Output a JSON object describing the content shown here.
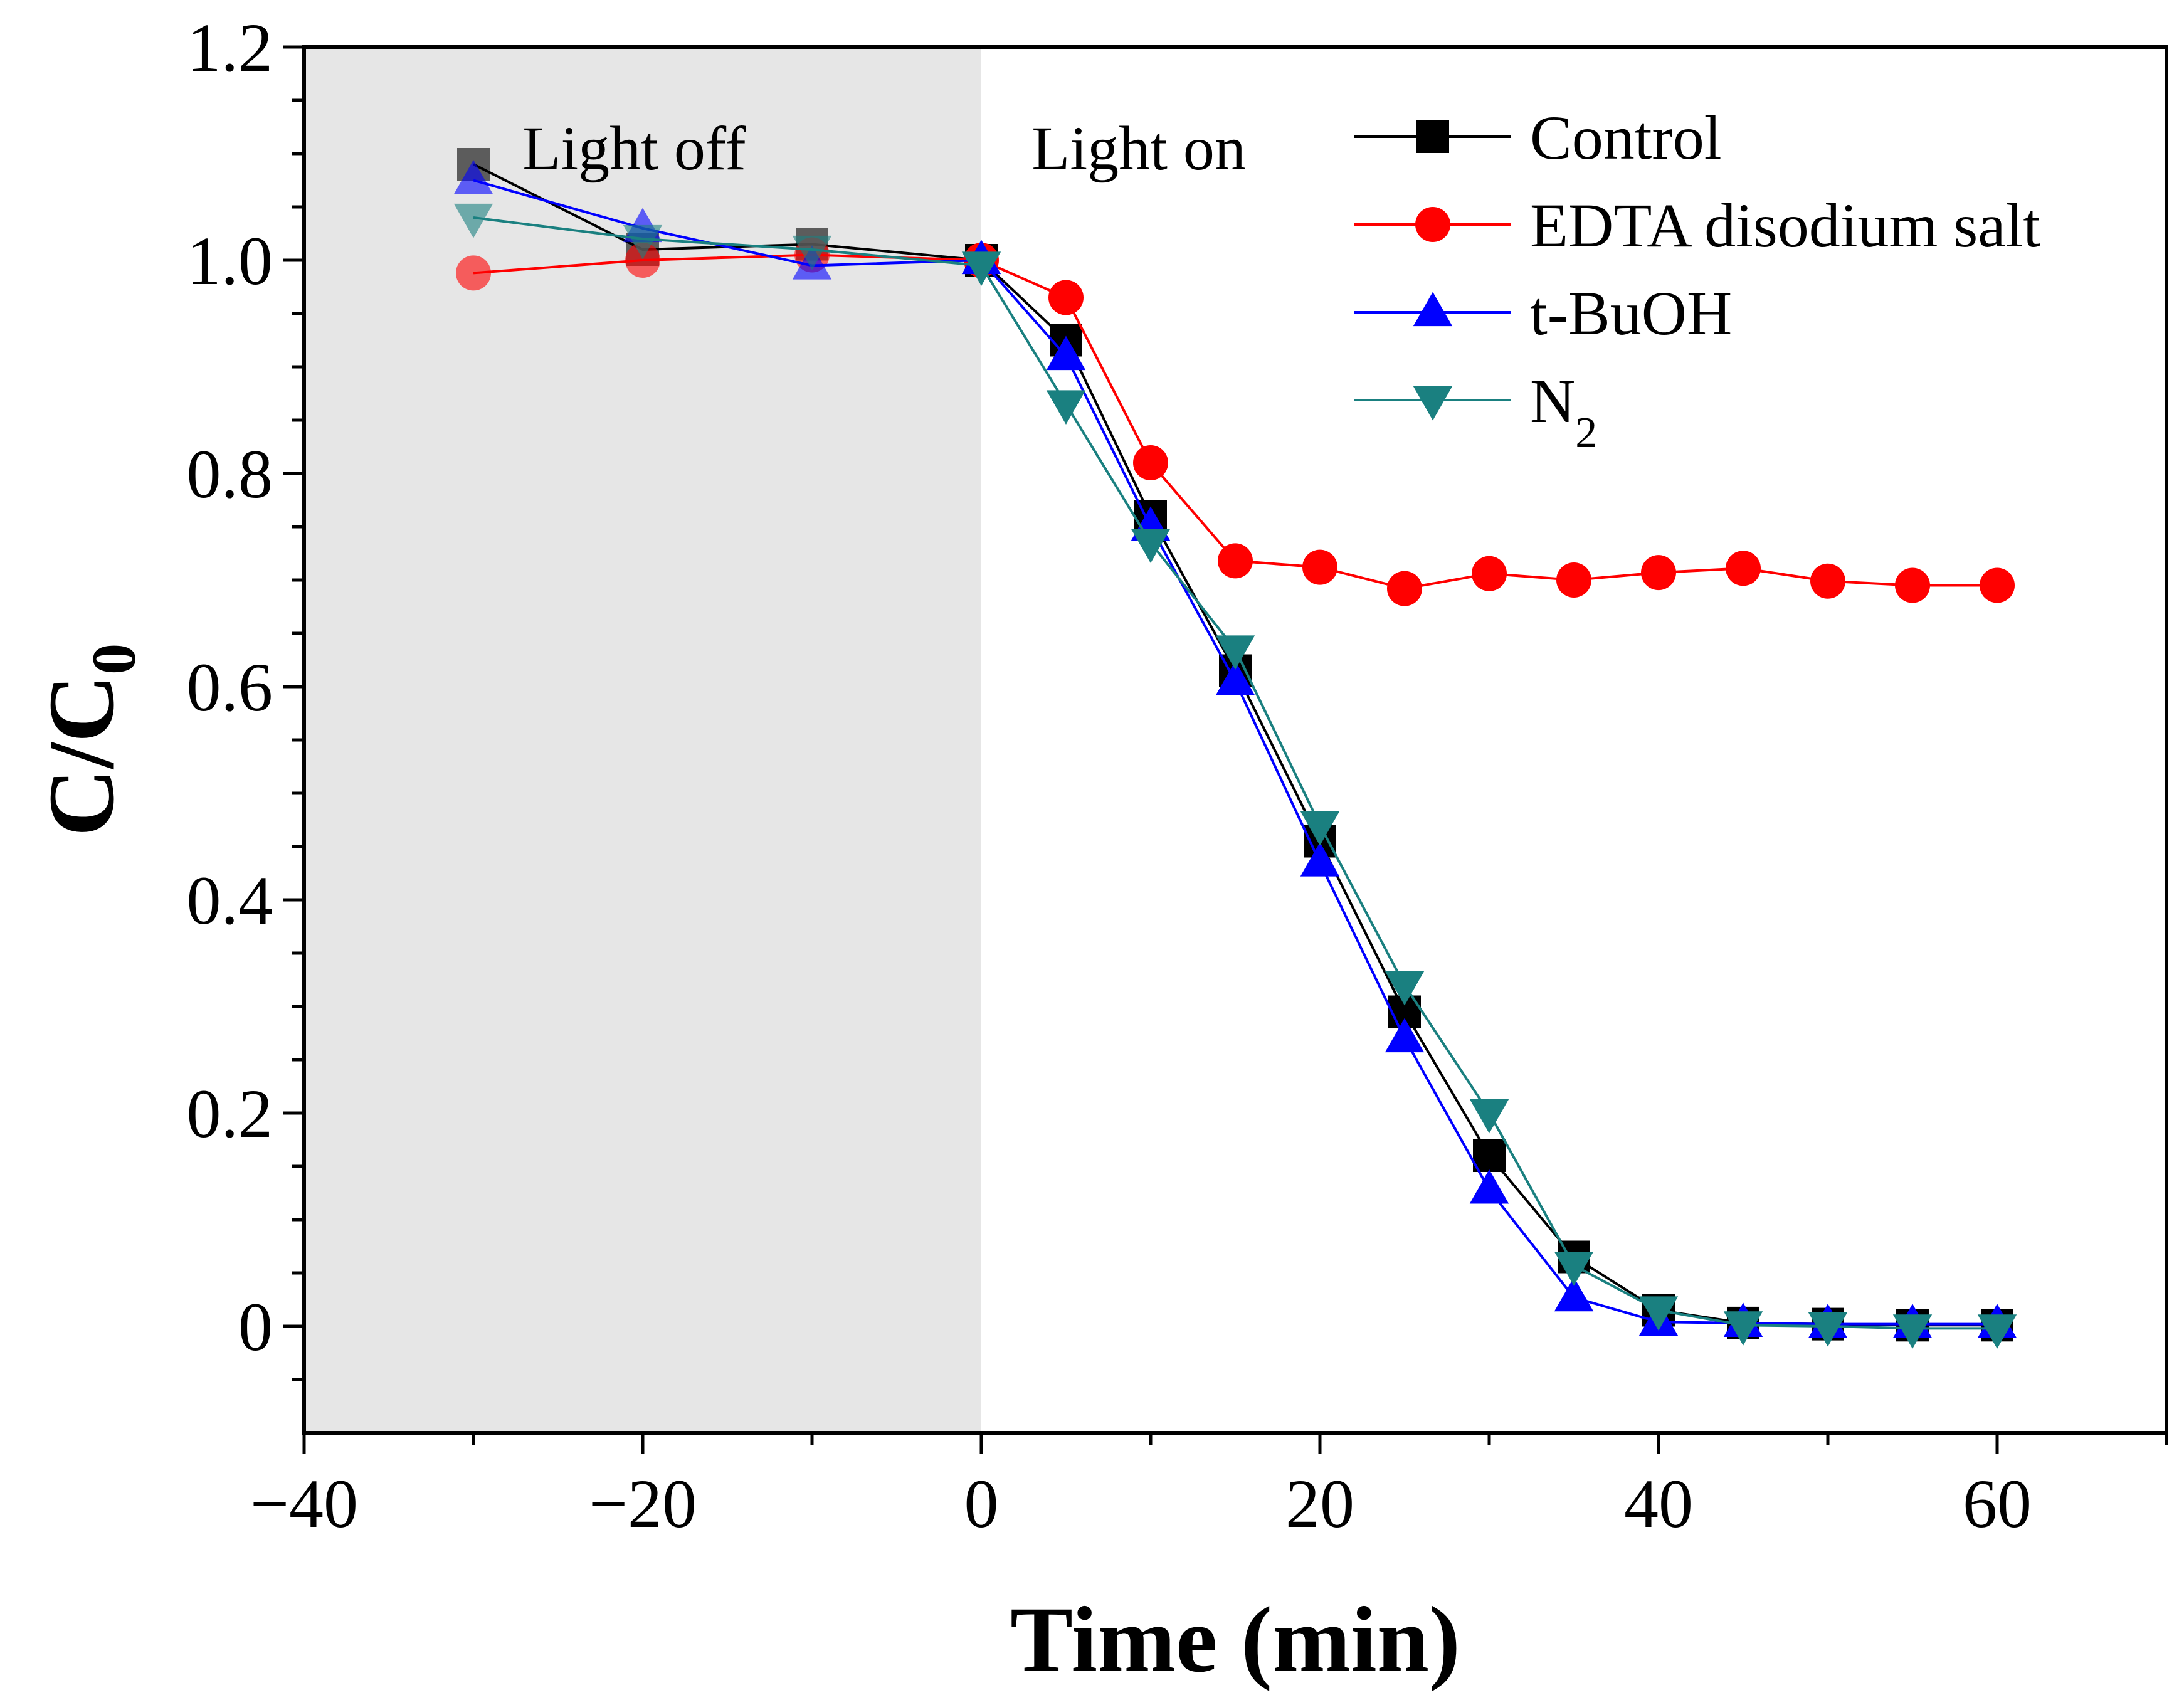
{
  "chart_data": {
    "type": "line",
    "title": "",
    "xlabel": "Time (min)",
    "ylabel_main": "C/C",
    "ylabel_sub": "0",
    "xlim": [
      -40,
      70
    ],
    "ylim": [
      -0.1,
      1.2
    ],
    "xticks": [
      -40,
      -20,
      0,
      20,
      40,
      60
    ],
    "xtick_labels": [
      "−40",
      "−20",
      "0",
      "20",
      "40",
      "60"
    ],
    "yticks": [
      0,
      0.2,
      0.4,
      0.6,
      0.8,
      1.0,
      1.2
    ],
    "ytick_labels": [
      "0",
      "0.2",
      "0.4",
      "0.6",
      "0.8",
      "1.0",
      "1.2"
    ],
    "shaded_region": {
      "x_from": -40,
      "x_to": 0,
      "color": "#e6e6e6"
    },
    "annotations": {
      "left": "Light off",
      "right": "Light on"
    },
    "legend_position": "top-right",
    "series": [
      {
        "name": "Control",
        "subscript": "",
        "marker": "square",
        "color": "#000000",
        "x": [
          -30,
          -20,
          -10,
          0,
          5,
          10,
          15,
          20,
          25,
          30,
          35,
          40,
          45,
          50,
          55,
          60
        ],
        "y": [
          1.09,
          1.01,
          1.015,
          1.0,
          0.925,
          0.76,
          0.615,
          0.455,
          0.295,
          0.16,
          0.065,
          0.015,
          0.003,
          0.002,
          0.001,
          0.001
        ]
      },
      {
        "name": "EDTA disodium salt",
        "subscript": "",
        "marker": "circle",
        "color": "#ff0000",
        "x": [
          -30,
          -20,
          -10,
          0,
          5,
          10,
          15,
          20,
          25,
          30,
          35,
          40,
          45,
          50,
          55,
          60
        ],
        "y": [
          0.988,
          1.0,
          1.005,
          1.0,
          0.965,
          0.81,
          0.718,
          0.712,
          0.692,
          0.706,
          0.7,
          0.707,
          0.711,
          0.699,
          0.695,
          0.695
        ]
      },
      {
        "name": "t-BuOH",
        "subscript": "",
        "marker": "triangle-up",
        "color": "#0000ff",
        "x": [
          -30,
          -20,
          -10,
          0,
          5,
          10,
          15,
          20,
          25,
          30,
          35,
          40,
          45,
          50,
          55,
          60
        ],
        "y": [
          1.075,
          1.03,
          0.995,
          1.0,
          0.91,
          0.75,
          0.605,
          0.435,
          0.27,
          0.128,
          0.027,
          0.004,
          0.003,
          0.002,
          0.002,
          0.002
        ]
      },
      {
        "name": "N",
        "subscript": "2",
        "marker": "triangle-down",
        "color": "#1a8080",
        "x": [
          -30,
          -20,
          -10,
          0,
          5,
          10,
          15,
          20,
          25,
          30,
          35,
          40,
          45,
          50,
          55,
          60
        ],
        "y": [
          1.04,
          1.02,
          1.01,
          0.995,
          0.865,
          0.735,
          0.635,
          0.47,
          0.32,
          0.2,
          0.057,
          0.015,
          0.001,
          0.0,
          -0.002,
          -0.002
        ]
      }
    ]
  }
}
